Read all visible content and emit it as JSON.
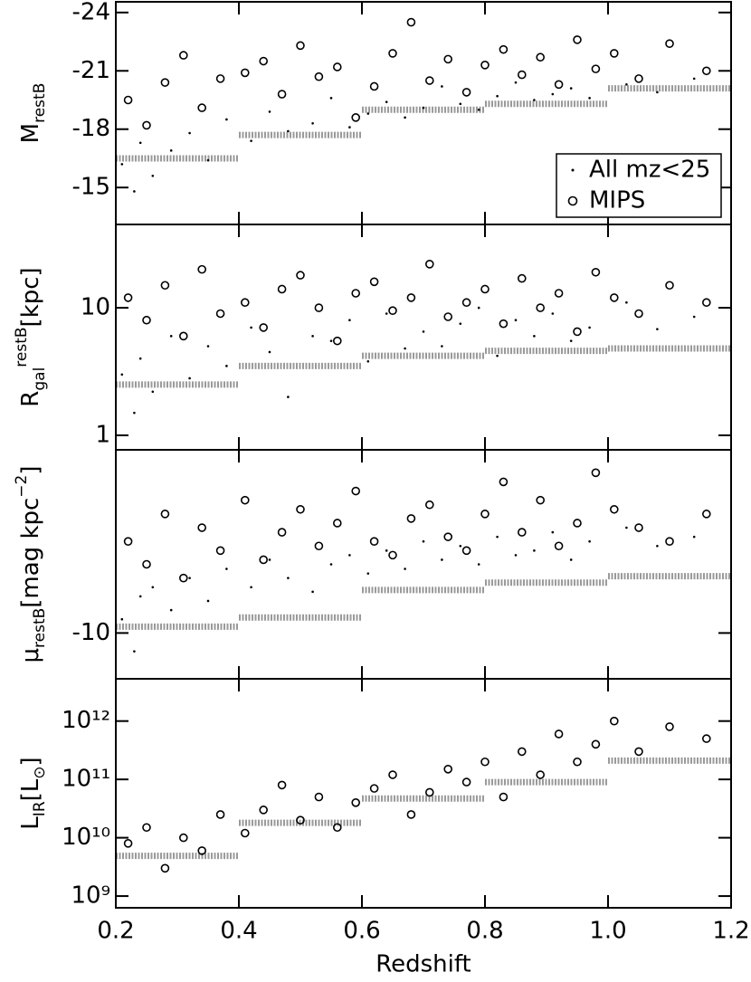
{
  "chart_data": [
    {
      "type": "scatter",
      "ylabel": [
        {
          "text": "M"
        },
        {
          "text": "restB",
          "pos": "sub"
        }
      ],
      "xlim": [
        0.2,
        1.2
      ],
      "ylim": [
        -13.1,
        -24.55
      ],
      "yticks": [
        -24,
        -21,
        -18,
        -15
      ],
      "log": false,
      "legend": "lower right",
      "series": [
        {
          "name": "All mz<25",
          "marker": "dot",
          "color": "#000000",
          "x": [
            0.21,
            0.23,
            0.24,
            0.26,
            0.29,
            0.32,
            0.35,
            0.38,
            0.42,
            0.45,
            0.48,
            0.52,
            0.55,
            0.58,
            0.61,
            0.64,
            0.67,
            0.7,
            0.73,
            0.76,
            0.79,
            0.82,
            0.85,
            0.88,
            0.91,
            0.94,
            0.97,
            1.03,
            1.08,
            1.14
          ],
          "values": [
            -16.2,
            -14.8,
            -17.3,
            -15.6,
            -16.9,
            -17.8,
            -16.4,
            -18.5,
            -17.4,
            -18.9,
            -17.9,
            -18.3,
            -19.6,
            -18.1,
            -18.8,
            -19.4,
            -18.6,
            -19.1,
            -20.2,
            -19.3,
            -19.0,
            -19.7,
            -20.4,
            -19.5,
            -19.8,
            -20.1,
            -19.6,
            -20.3,
            -19.9,
            -20.6
          ]
        },
        {
          "name": "MIPS",
          "marker": "circle",
          "color": "#000000",
          "x": [
            0.22,
            0.25,
            0.28,
            0.31,
            0.34,
            0.37,
            0.41,
            0.44,
            0.47,
            0.5,
            0.53,
            0.56,
            0.59,
            0.62,
            0.65,
            0.68,
            0.71,
            0.74,
            0.77,
            0.8,
            0.83,
            0.86,
            0.89,
            0.92,
            0.95,
            0.98,
            1.01,
            1.05,
            1.1,
            1.16
          ],
          "values": [
            -19.5,
            -18.2,
            -20.4,
            -21.8,
            -19.1,
            -20.6,
            -20.9,
            -21.5,
            -19.8,
            -22.3,
            -20.7,
            -21.2,
            -18.6,
            -20.2,
            -21.9,
            -23.5,
            -20.5,
            -21.6,
            -19.9,
            -21.3,
            -22.1,
            -20.8,
            -21.7,
            -20.3,
            -22.6,
            -21.1,
            -21.9,
            -20.6,
            -22.4,
            -21.0
          ]
        }
      ],
      "limits": [
        {
          "x": [
            0.2,
            0.4
          ],
          "value": -16.5
        },
        {
          "x": [
            0.4,
            0.6
          ],
          "value": -17.7
        },
        {
          "x": [
            0.6,
            0.8
          ],
          "value": -19.0
        },
        {
          "x": [
            0.8,
            1.0
          ],
          "value": -19.3
        },
        {
          "x": [
            1.0,
            1.2
          ],
          "value": -20.1
        }
      ]
    },
    {
      "type": "scatter",
      "ylabel": [
        {
          "text": "R"
        },
        {
          "text": "gal",
          "pos": "sub"
        },
        {
          "text": "restB",
          "pos": "sup"
        },
        {
          "text": "[kpc]"
        }
      ],
      "xlim": [
        0.2,
        1.2
      ],
      "ylim": [
        0.77,
        45
      ],
      "yticks": [
        1,
        10
      ],
      "log": true,
      "series": [
        {
          "marker": "dot",
          "color": "#000000",
          "x": [
            0.21,
            0.23,
            0.24,
            0.26,
            0.29,
            0.32,
            0.35,
            0.38,
            0.42,
            0.45,
            0.48,
            0.52,
            0.55,
            0.58,
            0.61,
            0.64,
            0.67,
            0.7,
            0.73,
            0.76,
            0.79,
            0.82,
            0.85,
            0.88,
            0.91,
            0.94,
            0.97,
            1.03,
            1.08,
            1.14
          ],
          "values": [
            3,
            1.5,
            4,
            2.2,
            6,
            2.8,
            5,
            3.5,
            7,
            4.5,
            2,
            6,
            5.5,
            8,
            3.8,
            9,
            4.8,
            6.5,
            5,
            7.5,
            10,
            4.2,
            8,
            6,
            9,
            5.5,
            7,
            11,
            6.8,
            8.5
          ]
        },
        {
          "marker": "circle",
          "color": "#000000",
          "x": [
            0.22,
            0.25,
            0.28,
            0.31,
            0.34,
            0.37,
            0.41,
            0.44,
            0.47,
            0.5,
            0.53,
            0.56,
            0.59,
            0.62,
            0.65,
            0.68,
            0.71,
            0.74,
            0.77,
            0.8,
            0.83,
            0.86,
            0.89,
            0.92,
            0.95,
            0.98,
            1.01,
            1.05,
            1.1,
            1.16
          ],
          "values": [
            12,
            8,
            15,
            6,
            20,
            9,
            11,
            7,
            14,
            18,
            10,
            5.5,
            13,
            16,
            9.5,
            12,
            22,
            8.5,
            11,
            14,
            7.5,
            17,
            10,
            13,
            6.5,
            19,
            12,
            9,
            15,
            11
          ]
        }
      ],
      "limits": [
        {
          "x": [
            0.2,
            0.4
          ],
          "value": 2.5
        },
        {
          "x": [
            0.4,
            0.6
          ],
          "value": 3.5
        },
        {
          "x": [
            0.6,
            0.8
          ],
          "value": 4.2
        },
        {
          "x": [
            0.8,
            1.0
          ],
          "value": 4.6
        },
        {
          "x": [
            1.0,
            1.2
          ],
          "value": 4.8
        }
      ]
    },
    {
      "type": "scatter",
      "ylabel": [
        {
          "text": "μ"
        },
        {
          "text": "restB",
          "pos": "sub"
        },
        {
          "text": "[mag kpc"
        },
        {
          "text": "−2",
          "pos": "sup"
        },
        {
          "text": "]"
        }
      ],
      "xlim": [
        0.2,
        1.2
      ],
      "ylim": [
        -9,
        -14
      ],
      "yticks": [
        -10
      ],
      "log": false,
      "series": [
        {
          "marker": "dot",
          "color": "#000000",
          "x": [
            0.21,
            0.23,
            0.24,
            0.26,
            0.29,
            0.32,
            0.35,
            0.38,
            0.42,
            0.45,
            0.48,
            0.52,
            0.55,
            0.58,
            0.61,
            0.64,
            0.67,
            0.7,
            0.73,
            0.76,
            0.79,
            0.82,
            0.85,
            0.88,
            0.91,
            0.94,
            0.97,
            1.03,
            1.08,
            1.14
          ],
          "values": [
            -10.3,
            -9.6,
            -10.8,
            -11.0,
            -10.5,
            -11.2,
            -10.7,
            -11.4,
            -11.0,
            -11.6,
            -11.2,
            -10.9,
            -11.5,
            -11.7,
            -11.3,
            -11.8,
            -11.4,
            -12.0,
            -11.6,
            -11.9,
            -11.5,
            -12.1,
            -11.7,
            -11.8,
            -12.2,
            -11.6,
            -12.0,
            -12.3,
            -11.9,
            -12.1
          ]
        },
        {
          "marker": "circle",
          "color": "#000000",
          "x": [
            0.22,
            0.25,
            0.28,
            0.31,
            0.34,
            0.37,
            0.41,
            0.44,
            0.47,
            0.5,
            0.53,
            0.56,
            0.59,
            0.62,
            0.65,
            0.68,
            0.71,
            0.74,
            0.77,
            0.8,
            0.83,
            0.86,
            0.89,
            0.92,
            0.95,
            0.98,
            1.01,
            1.05,
            1.1,
            1.16
          ],
          "values": [
            -12.0,
            -11.5,
            -12.6,
            -11.2,
            -12.3,
            -11.8,
            -12.9,
            -11.6,
            -12.2,
            -12.7,
            -11.9,
            -12.4,
            -13.1,
            -12.0,
            -11.7,
            -12.5,
            -12.8,
            -12.1,
            -11.8,
            -12.6,
            -13.3,
            -12.2,
            -12.9,
            -11.9,
            -12.4,
            -13.5,
            -12.7,
            -12.3,
            -12.0,
            -12.6
          ]
        }
      ],
      "limits": [
        {
          "x": [
            0.2,
            0.4
          ],
          "value": -10.14
        },
        {
          "x": [
            0.4,
            0.6
          ],
          "value": -10.34
        },
        {
          "x": [
            0.6,
            0.8
          ],
          "value": -10.94
        },
        {
          "x": [
            0.8,
            1.0
          ],
          "value": -11.1
        },
        {
          "x": [
            1.0,
            1.2
          ],
          "value": -11.24
        }
      ]
    },
    {
      "type": "scatter",
      "ylabel": [
        {
          "text": "L"
        },
        {
          "text": "IR",
          "pos": "sub"
        },
        {
          "text": "[L"
        },
        {
          "text": "⊙",
          "pos": "sub"
        },
        {
          "text": "]"
        }
      ],
      "xlabel": "Redshift",
      "xlim": [
        0.2,
        1.2
      ],
      "xticks": [
        {
          "value": 0.2,
          "label": "0.2"
        },
        {
          "value": 0.4,
          "label": "0.4"
        },
        {
          "value": 0.6,
          "label": "0.6"
        },
        {
          "value": 0.8,
          "label": "0.8"
        },
        {
          "value": 1.0,
          "label": "1.0"
        },
        {
          "value": 1.2,
          "label": "1.2"
        }
      ],
      "ylim": [
        630000000,
        5300000000000
      ],
      "log": true,
      "yticks": [
        {
          "value": 1000000000,
          "label": "10⁹"
        },
        {
          "value": 10000000000,
          "label": "10¹⁰"
        },
        {
          "value": 100000000000,
          "label": "10¹¹"
        },
        {
          "value": 1000000000000,
          "label": "10¹²"
        }
      ],
      "series": [
        {
          "marker": "circle",
          "color": "#000000",
          "x": [
            0.22,
            0.25,
            0.28,
            0.31,
            0.34,
            0.37,
            0.41,
            0.44,
            0.47,
            0.5,
            0.53,
            0.56,
            0.59,
            0.62,
            0.65,
            0.68,
            0.71,
            0.74,
            0.77,
            0.8,
            0.83,
            0.86,
            0.89,
            0.92,
            0.95,
            0.98,
            1.01,
            1.05,
            1.1,
            1.16
          ],
          "values": [
            8000000000,
            15000000000,
            3000000000,
            10000000000,
            6000000000,
            25000000000,
            12000000000,
            30000000000,
            80000000000,
            20000000000,
            50000000000,
            15000000000,
            40000000000,
            70000000000,
            120000000000,
            25000000000,
            60000000000,
            150000000000,
            90000000000,
            200000000000,
            50000000000,
            300000000000,
            120000000000,
            600000000000,
            200000000000,
            400000000000,
            1000000000000,
            300000000000,
            800000000000,
            500000000000
          ]
        }
      ],
      "limits": [
        {
          "x": [
            0.2,
            0.4
          ],
          "value": 4900000000
        },
        {
          "x": [
            0.4,
            0.6
          ],
          "value": 18000000000
        },
        {
          "x": [
            0.6,
            0.8
          ],
          "value": 47000000000
        },
        {
          "x": [
            0.8,
            1.0
          ],
          "value": 90000000000
        },
        {
          "x": [
            1.0,
            1.2
          ],
          "value": 210000000000
        }
      ]
    }
  ]
}
